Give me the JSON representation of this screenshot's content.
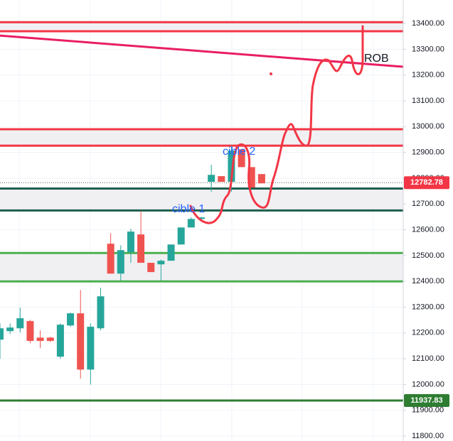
{
  "chart_data": {
    "type": "candlestick",
    "up_color": "#26a69a",
    "down_color": "#ef5350",
    "open": [
      12174,
      12207,
      12218,
      12246,
      12182,
      12182,
      12108,
      12229,
      12276,
      12058,
      12218,
      12546,
      12430,
      12513,
      12582,
      12472,
      12466,
      12480,
      12543,
      12609,
      12642,
      12786,
      12808,
      12786,
      12912,
      12843,
      12816
    ],
    "high": [
      12237,
      12237,
      12298,
      12251,
      12210,
      12185,
      12237,
      12279,
      12367,
      12237,
      12375,
      12587,
      12540,
      12604,
      12673,
      12472,
      12485,
      12543,
      12609,
      12648,
      12650,
      12852,
      12808,
      12926,
      12912,
      12843,
      12816
    ],
    "low": [
      12100,
      12196,
      12202,
      12160,
      12141,
      12165,
      12100,
      12224,
      12023,
      12000,
      12210,
      12430,
      12403,
      12472,
      12472,
      12436,
      12403,
      12480,
      12543,
      12609,
      12640,
      12747,
      12786,
      12747,
      12843,
      12764,
      12780
    ],
    "close": [
      12218,
      12221,
      12257,
      12169,
      12169,
      12169,
      12232,
      12276,
      12058,
      12224,
      12342,
      12430,
      12521,
      12593,
      12472,
      12436,
      12480,
      12543,
      12609,
      12642,
      12648,
      12813,
      12786,
      12907,
      12843,
      12764,
      12780
    ],
    "ylim": [
      11781,
      13491
    ],
    "yticks": [
      {
        "value": 11800,
        "label": "11800.00"
      },
      {
        "value": 11900,
        "label": "11900.00"
      },
      {
        "value": 12000,
        "label": "12000.00"
      },
      {
        "value": 12100,
        "label": "12100.00"
      },
      {
        "value": 12200,
        "label": "12200.00"
      },
      {
        "value": 12300,
        "label": "12300.00"
      },
      {
        "value": 12400,
        "label": "12400.00"
      },
      {
        "value": 12500,
        "label": "12500.00"
      },
      {
        "value": 12600,
        "label": "12600.00"
      },
      {
        "value": 12700,
        "label": "12700.00"
      },
      {
        "value": 12800,
        "label": "12800.00"
      },
      {
        "value": 12900,
        "label": "12900.00"
      },
      {
        "value": 13000,
        "label": "13000.00"
      },
      {
        "value": 13100,
        "label": "13100.00"
      },
      {
        "value": 13200,
        "label": "13200.00"
      },
      {
        "value": 13300,
        "label": "13300.00"
      },
      {
        "value": 13400,
        "label": "13400.00"
      }
    ],
    "grid": true,
    "zones": [
      [
        13405,
        13370
      ],
      [
        12990,
        12926
      ],
      [
        12760,
        12675
      ],
      [
        12510,
        12400
      ]
    ],
    "zone_color": "#f0f0f3",
    "levels": [
      {
        "value": 13405,
        "color": "#f23645"
      },
      {
        "value": 13370,
        "color": "#f23645"
      },
      {
        "value": 12990,
        "color": "#f23645"
      },
      {
        "value": 12926,
        "color": "#f23645"
      },
      {
        "value": 12760,
        "color": "#1e5e4e"
      },
      {
        "value": 12675,
        "color": "#1e5e4e"
      },
      {
        "value": 12510,
        "color": "#4caf50"
      },
      {
        "value": 12400,
        "color": "#4caf50"
      },
      {
        "value": 11937.83,
        "color": "#2e7d32"
      }
    ],
    "trendline": {
      "values": [
        13353,
        13232
      ],
      "color": "#e91e63"
    },
    "price_labels": [
      {
        "value": 12782.78,
        "color": "#f23645"
      },
      {
        "value": 11937.83,
        "color": "#2e7d32"
      }
    ],
    "annotations": [
      "cible 1",
      "cible 2",
      "ROB"
    ]
  }
}
